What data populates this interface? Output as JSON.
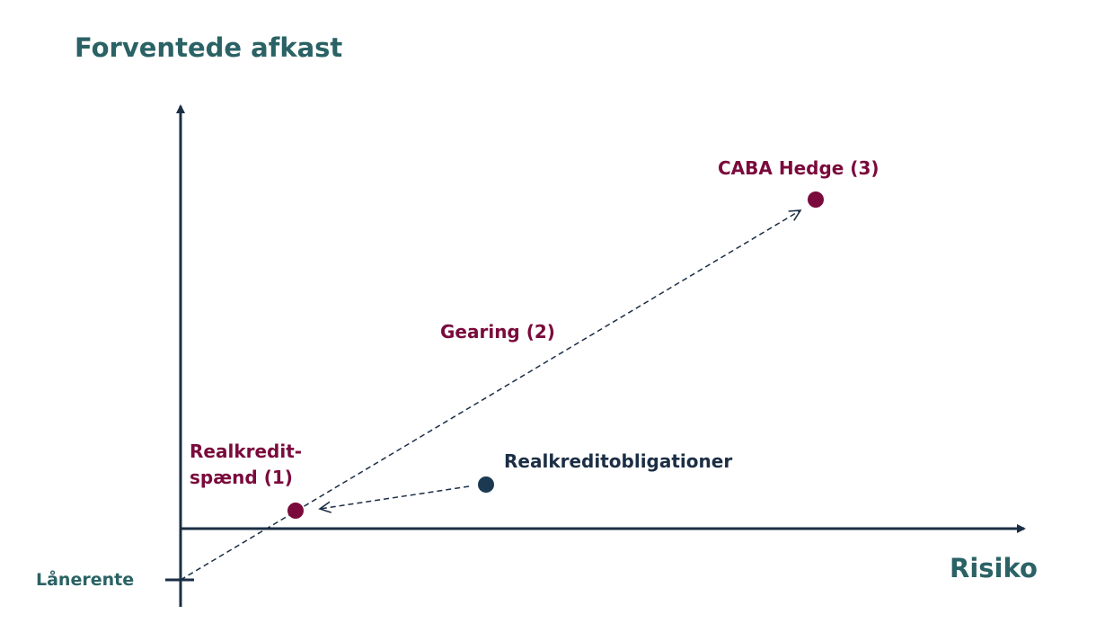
{
  "axes": {
    "y_label": "Forventede afkast",
    "x_label": "Risiko",
    "y_tick_label": "Lånerente"
  },
  "nodes": [
    {
      "label": [
        "Realkredit-",
        "spænd (1)"
      ]
    },
    {
      "label": [
        "CABA Hedge (3)"
      ]
    },
    {
      "label": [
        "Realkreditobligationer"
      ]
    }
  ],
  "edges": [
    {
      "label": "Gearing (2)"
    }
  ]
}
